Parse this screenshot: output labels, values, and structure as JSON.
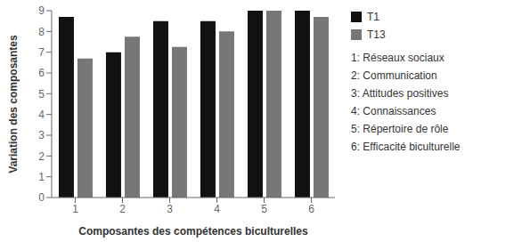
{
  "chart_data": {
    "type": "bar",
    "categories": [
      "1",
      "2",
      "3",
      "4",
      "5",
      "6"
    ],
    "series": [
      {
        "name": "T1",
        "color": "#111111",
        "values": [
          8.7,
          7.0,
          8.5,
          8.5,
          9.0,
          9.0
        ]
      },
      {
        "name": "T13",
        "color": "#777777",
        "values": [
          6.7,
          7.75,
          7.25,
          8.0,
          9.0,
          8.7
        ]
      }
    ],
    "xlabel": "Composantes des compétences biculturelles",
    "ylabel": "Variation des composantes",
    "ylim": [
      0,
      9
    ],
    "yticks": [
      0,
      1,
      2,
      3,
      4,
      5,
      6,
      7,
      8,
      9
    ],
    "legend": "right",
    "annotations": [
      "1: Réseaux sociaux",
      "2: Communication",
      "3: Attitudes positives",
      "4: Connaissances",
      "5: Répertoire de rôle",
      "6: Efficacité biculturelle"
    ]
  }
}
